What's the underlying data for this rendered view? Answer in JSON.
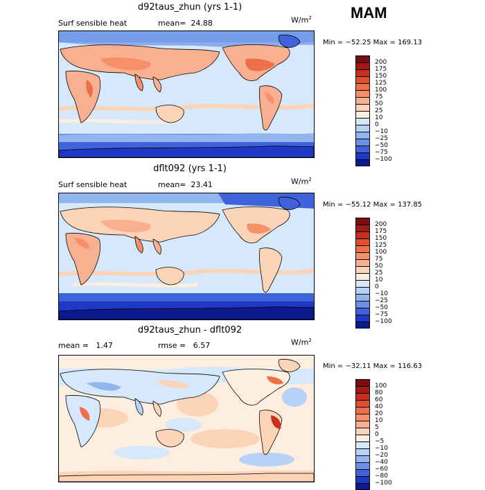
{
  "season": "MAM",
  "panels": [
    {
      "title": "d92taus_zhun (yrs 1-1)",
      "left_label": "Surf sensible heat",
      "stat_label": "mean=",
      "stat_value": "24.88",
      "stat2_label": "",
      "stat2_value": "",
      "unit_base": "W/m",
      "unit_sup": "2",
      "minmax": "Min = −52.25 Max = 169.13",
      "colorbar": {
        "labels": [
          "200",
          "175",
          "150",
          "125",
          "100",
          "75",
          "50",
          "25",
          "10",
          "0",
          "−10",
          "−25",
          "−50",
          "−75",
          "−100"
        ],
        "colors": [
          "#7a0d0d",
          "#a11b14",
          "#c7301f",
          "#e0502f",
          "#ee7048",
          "#f5906a",
          "#f9b090",
          "#fcd4b8",
          "#fdeee0",
          "#d6e8fb",
          "#b6d2f6",
          "#91b5ef",
          "#6a91e6",
          "#3f63db",
          "#1f39c6",
          "#0c1a8f"
        ]
      }
    },
    {
      "title": "dflt092 (yrs 1-1)",
      "left_label": "Surf sensible heat",
      "stat_label": "mean=",
      "stat_value": "23.41",
      "stat2_label": "",
      "stat2_value": "",
      "unit_base": "W/m",
      "unit_sup": "2",
      "minmax": "Min = −55.12 Max = 137.85",
      "colorbar": {
        "labels": [
          "200",
          "175",
          "150",
          "125",
          "100",
          "75",
          "50",
          "25",
          "10",
          "0",
          "−10",
          "−25",
          "−50",
          "−75",
          "−100"
        ],
        "colors": [
          "#7a0d0d",
          "#a11b14",
          "#c7301f",
          "#e0502f",
          "#ee7048",
          "#f5906a",
          "#f9b090",
          "#fcd4b8",
          "#fdeee0",
          "#d6e8fb",
          "#b6d2f6",
          "#91b5ef",
          "#6a91e6",
          "#3f63db",
          "#1f39c6",
          "#0c1a8f"
        ]
      }
    },
    {
      "title": "d92taus_zhun - dflt092",
      "left_label": "",
      "stat_label": "mean =",
      "stat_value": "1.47",
      "stat2_label": "rmse =",
      "stat2_value": "6.57",
      "unit_base": "W/m",
      "unit_sup": "2",
      "minmax": "Min = −32.11 Max = 116.63",
      "colorbar": {
        "labels": [
          "100",
          "80",
          "60",
          "40",
          "20",
          "10",
          "5",
          "0",
          "−5",
          "−10",
          "−20",
          "−40",
          "−60",
          "−80",
          "−100"
        ],
        "colors": [
          "#7a0d0d",
          "#a11b14",
          "#c7301f",
          "#e0502f",
          "#ee7048",
          "#f5906a",
          "#f9b090",
          "#fcd4b8",
          "#fdeee0",
          "#d6e8fb",
          "#b6d2f6",
          "#91b5ef",
          "#6a91e6",
          "#3f63db",
          "#1f39c6",
          "#0c1a8f"
        ]
      }
    }
  ]
}
